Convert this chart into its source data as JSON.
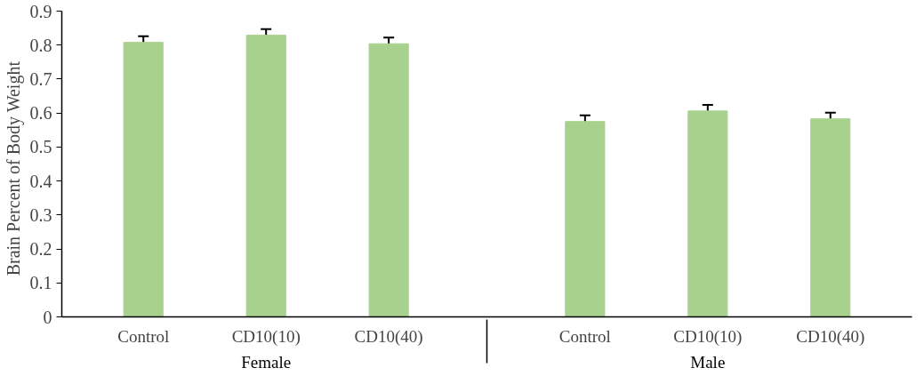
{
  "chart_data": {
    "type": "bar",
    "ylabel": "Brain  Percent of  Body Weight",
    "categories": [
      "Control",
      "CD10(10)",
      "CD10(40)",
      "Control",
      "CD10(10)",
      "CD10(40)"
    ],
    "annotations": [
      "Female",
      "Male"
    ],
    "values": [
      0.808,
      0.829,
      0.804,
      0.575,
      0.606,
      0.583
    ],
    "errors": [
      0.018,
      0.018,
      0.018,
      0.018,
      0.018,
      0.018
    ],
    "color": "#a9d18e",
    "ylim": [
      0,
      0.9
    ],
    "yticks": [
      0,
      0.1,
      0.2,
      0.3,
      0.4,
      0.5,
      0.6,
      0.7,
      0.8,
      0.9
    ],
    "grid": false
  }
}
